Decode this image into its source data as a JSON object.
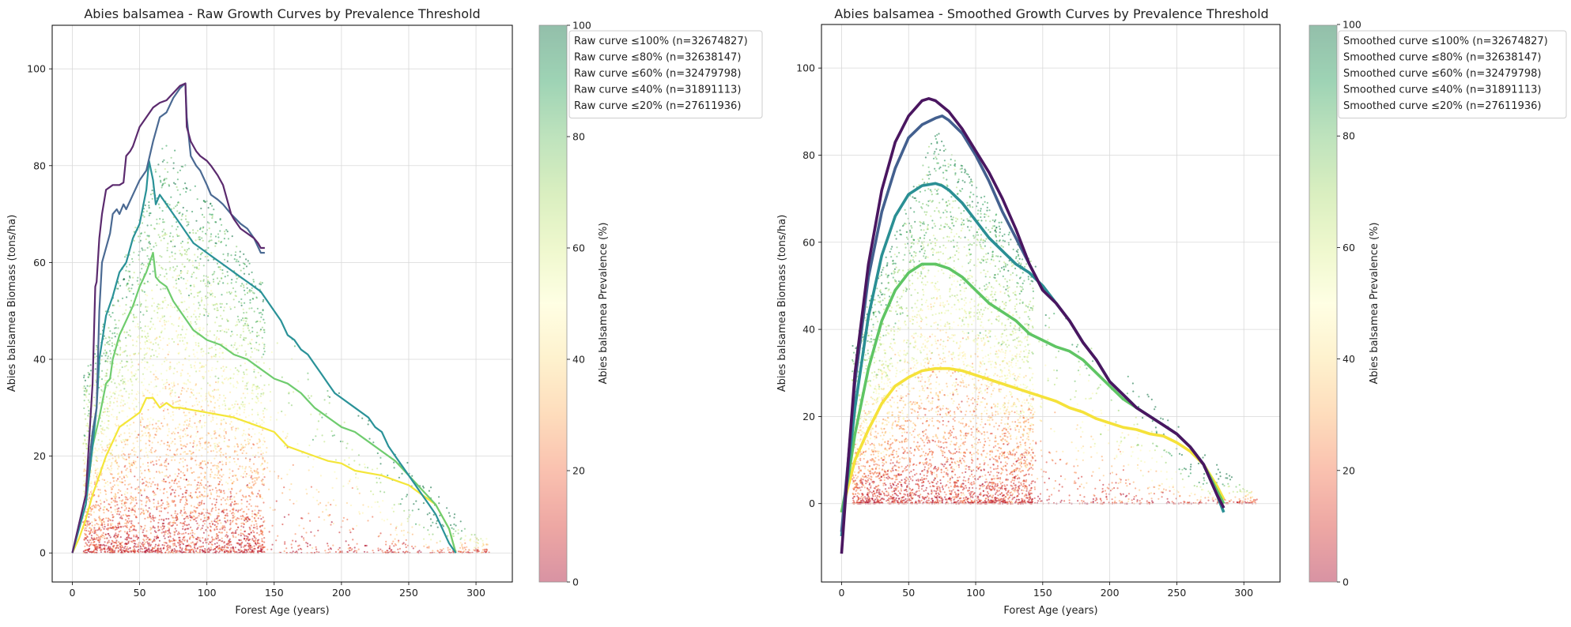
{
  "chart_data": [
    {
      "type": "line",
      "title": "Abies balsamea - Raw Growth Curves by Prevalence Threshold",
      "xlabel": "Forest Age (years)",
      "ylabel": "Abies balsamea Biomass (tons/ha)",
      "xlim": [
        -15,
        327
      ],
      "ylim": [
        -6,
        109
      ],
      "xticks": [
        0,
        50,
        100,
        150,
        200,
        250,
        300
      ],
      "yticks": [
        0,
        20,
        40,
        60,
        80,
        100
      ],
      "grid": true,
      "legend_position": "upper-right (outside, beside colorbar)",
      "colorbar": {
        "label": "Abies balsamea Prevalence (%)",
        "range": [
          0,
          100
        ],
        "ticks": [
          0,
          20,
          40,
          60,
          80,
          100
        ],
        "colormap": "RdYlGn"
      },
      "scatter_background": {
        "description_free": true,
        "x_range": [
          0,
          313
        ],
        "y_range": [
          0,
          97
        ],
        "color_by": "prevalence"
      },
      "series": [
        {
          "name": "Raw curve ≤100% (n=32674827)",
          "color": "#5b2a6e",
          "x": [
            0,
            10,
            15,
            17,
            18,
            20,
            22,
            25,
            30,
            35,
            38,
            40,
            43,
            45,
            50,
            55,
            60,
            65,
            70,
            75,
            80,
            84,
            85,
            88,
            92,
            95,
            100,
            103,
            108,
            112,
            115,
            118,
            120,
            125,
            130,
            135,
            138,
            140,
            143
          ],
          "y": [
            0,
            12,
            35,
            55,
            56,
            65,
            70,
            75,
            76,
            76,
            76.5,
            82,
            83,
            84,
            88,
            90,
            92,
            93,
            93.5,
            95,
            96.5,
            97,
            88,
            85,
            83,
            82,
            81,
            80,
            78,
            76,
            73,
            70,
            69,
            67,
            66,
            65,
            64,
            63,
            63
          ]
        },
        {
          "name": "Raw curve ≤80% (n=32638147)",
          "color": "#4b6a93",
          "x": [
            0,
            10,
            15,
            18,
            20,
            22,
            25,
            28,
            30,
            33,
            35,
            38,
            40,
            45,
            50,
            55,
            60,
            65,
            70,
            75,
            80,
            84,
            85,
            88,
            92,
            95,
            100,
            103,
            108,
            112,
            118,
            125,
            130,
            135,
            140,
            143
          ],
          "y": [
            0,
            12,
            25,
            30,
            50,
            60,
            63,
            66,
            70,
            71,
            70,
            72,
            71,
            74,
            77,
            79,
            85,
            90,
            91,
            94,
            96,
            97,
            90,
            82,
            80,
            79,
            76,
            74,
            73,
            72,
            70,
            68,
            67,
            65,
            62,
            62
          ]
        },
        {
          "name": "Raw curve ≤60% (n=32479798)",
          "color": "#2a9298",
          "x": [
            0,
            5,
            10,
            15,
            18,
            20,
            25,
            30,
            35,
            40,
            45,
            50,
            55,
            57,
            60,
            62,
            65,
            70,
            75,
            80,
            85,
            90,
            95,
            100,
            105,
            110,
            115,
            120,
            125,
            130,
            140,
            150,
            155,
            160,
            165,
            170,
            175,
            180,
            185,
            190,
            195,
            200,
            210,
            220,
            225,
            230,
            235,
            240,
            245,
            250,
            255,
            260,
            265,
            270,
            275,
            280,
            285
          ],
          "y": [
            0,
            5,
            10,
            22,
            30,
            40,
            49,
            53,
            58,
            60,
            65,
            68,
            75,
            81,
            77,
            72,
            74,
            72,
            70,
            68,
            66,
            64,
            63,
            62,
            61,
            60,
            59,
            58,
            57,
            56,
            54,
            50,
            48,
            45,
            44,
            42,
            41,
            39,
            37,
            35,
            33,
            32,
            30,
            28,
            26,
            25,
            22,
            20,
            18,
            16,
            14,
            12,
            10,
            8,
            5,
            2,
            0
          ]
        },
        {
          "name": "Raw curve ≤40% (n=31891113)",
          "color": "#6fcc6e",
          "x": [
            0,
            5,
            10,
            15,
            20,
            25,
            28,
            30,
            35,
            40,
            45,
            50,
            55,
            60,
            62,
            65,
            70,
            75,
            80,
            85,
            90,
            95,
            100,
            110,
            120,
            130,
            140,
            150,
            160,
            170,
            180,
            190,
            200,
            210,
            220,
            230,
            240,
            250,
            260,
            270,
            280,
            285
          ],
          "y": [
            0,
            5,
            10,
            22,
            28,
            35,
            36,
            40,
            45,
            48,
            51,
            55,
            58,
            62,
            57,
            56,
            55,
            52,
            50,
            48,
            46,
            45,
            44,
            43,
            41,
            40,
            38,
            36,
            35,
            33,
            30,
            28,
            26,
            25,
            23,
            21,
            19,
            16,
            13,
            10,
            5,
            0
          ]
        },
        {
          "name": "Raw curve ≤20% (n=27611936)",
          "color": "#f4e639",
          "x": [
            0,
            5,
            10,
            15,
            20,
            25,
            30,
            35,
            40,
            45,
            50,
            55,
            60,
            65,
            70,
            75,
            80,
            90,
            100,
            110,
            120,
            130,
            140,
            150,
            160,
            170,
            180,
            190,
            200,
            210,
            220,
            230,
            240,
            250,
            260,
            270,
            280,
            285
          ],
          "y": [
            0,
            3,
            7,
            12,
            16,
            20,
            23,
            26,
            27,
            28,
            29,
            32,
            32,
            30,
            31,
            30,
            30,
            29.5,
            29,
            28.5,
            28,
            27,
            26,
            25,
            22,
            21,
            20,
            19,
            18.5,
            17,
            16.5,
            16,
            15,
            14,
            12,
            10,
            5,
            0
          ]
        }
      ]
    },
    {
      "type": "line",
      "title": "Abies balsamea - Smoothed Growth Curves by Prevalence Threshold",
      "xlabel": "Forest Age (years)",
      "ylabel": "Abies balsamea Biomass (tons/ha)",
      "xlim": [
        -15,
        327
      ],
      "ylim": [
        -18,
        110
      ],
      "xticks": [
        0,
        50,
        100,
        150,
        200,
        250,
        300
      ],
      "yticks": [
        0,
        20,
        40,
        60,
        80,
        100
      ],
      "grid": true,
      "legend_position": "upper-right (outside, beside colorbar)",
      "colorbar": {
        "label": "Abies balsamea Prevalence (%)",
        "range": [
          0,
          100
        ],
        "ticks": [
          0,
          20,
          40,
          60,
          80,
          100
        ],
        "colormap": "RdYlGn"
      },
      "scatter_background": {
        "x_range": [
          0,
          313
        ],
        "y_range": [
          0,
          97
        ],
        "color_by": "prevalence"
      },
      "series": [
        {
          "name": "Smoothed curve ≤100% (n=32674827)",
          "color": "#4a1660",
          "x": [
            0,
            5,
            10,
            20,
            30,
            40,
            50,
            60,
            65,
            70,
            80,
            90,
            100,
            110,
            120,
            130,
            140,
            150,
            160,
            170,
            180,
            190,
            200,
            210,
            220,
            230,
            240,
            250,
            260,
            270,
            280,
            285
          ],
          "y": [
            -11.5,
            10,
            30,
            55,
            72,
            83,
            89,
            92.5,
            93,
            92.5,
            90,
            86,
            81,
            76,
            70,
            63,
            55,
            49,
            46,
            42,
            37,
            33,
            28,
            25,
            22,
            20,
            18,
            16,
            13,
            9,
            2,
            -1
          ]
        },
        {
          "name": "Smoothed curve ≤80% (n=32638147)",
          "color": "#43608f",
          "x": [
            0,
            5,
            10,
            20,
            30,
            40,
            50,
            60,
            70,
            75,
            80,
            90,
            100,
            110,
            120,
            130,
            140,
            150,
            160,
            170,
            180,
            190,
            200,
            210,
            220,
            230,
            240,
            250,
            260,
            270,
            280,
            285
          ],
          "y": [
            -6.5,
            10,
            28,
            52,
            67,
            77,
            84,
            87,
            88.5,
            89,
            88,
            85,
            80,
            74,
            67,
            61,
            55,
            49,
            46,
            42,
            37,
            33,
            28,
            25,
            22,
            20,
            18,
            16,
            13,
            9,
            2,
            -1
          ]
        },
        {
          "name": "Smoothed curve ≤60% (n=32479798)",
          "color": "#2a8f94",
          "x": [
            0,
            5,
            10,
            20,
            30,
            40,
            50,
            60,
            70,
            75,
            80,
            90,
            100,
            110,
            120,
            130,
            140,
            150,
            160,
            170,
            180,
            190,
            200,
            210,
            220,
            230,
            240,
            250,
            260,
            270,
            280,
            285
          ],
          "y": [
            -7.5,
            8,
            22,
            43,
            57,
            66,
            71,
            73,
            73.5,
            73,
            72,
            69,
            65,
            61,
            58,
            55,
            53,
            50,
            46,
            42,
            37,
            33,
            28,
            25,
            22,
            20,
            18,
            16,
            13,
            9,
            2,
            -2
          ]
        },
        {
          "name": "Smoothed curve ≤40% (n=31891113)",
          "color": "#5fc564",
          "x": [
            0,
            5,
            10,
            20,
            30,
            40,
            50,
            60,
            70,
            75,
            80,
            90,
            100,
            110,
            120,
            130,
            140,
            150,
            160,
            170,
            180,
            190,
            200,
            210,
            220,
            230,
            240,
            250,
            260,
            270,
            280,
            285
          ],
          "y": [
            -2,
            6,
            16,
            31,
            42,
            49,
            53,
            55,
            55,
            54.5,
            54,
            52,
            49,
            46,
            44,
            42,
            39,
            37.5,
            36,
            35,
            33,
            30,
            27,
            24,
            22,
            20,
            18,
            16,
            13,
            9,
            3,
            0
          ]
        },
        {
          "name": "Smoothed curve ≤20% (n=27611936)",
          "color": "#f5e23a",
          "x": [
            0,
            5,
            10,
            20,
            30,
            40,
            50,
            60,
            70,
            80,
            90,
            100,
            110,
            120,
            130,
            140,
            150,
            160,
            170,
            180,
            190,
            200,
            210,
            220,
            230,
            240,
            250,
            260,
            270,
            280,
            285
          ],
          "y": [
            -2,
            4,
            10,
            17,
            23,
            27,
            29,
            30.5,
            31,
            31,
            30.5,
            29.5,
            28.5,
            27.5,
            26.5,
            25.5,
            24.5,
            23.5,
            22,
            21,
            19.5,
            18.5,
            17.5,
            17,
            16,
            15.5,
            14,
            12,
            9,
            4,
            1
          ]
        }
      ]
    }
  ]
}
